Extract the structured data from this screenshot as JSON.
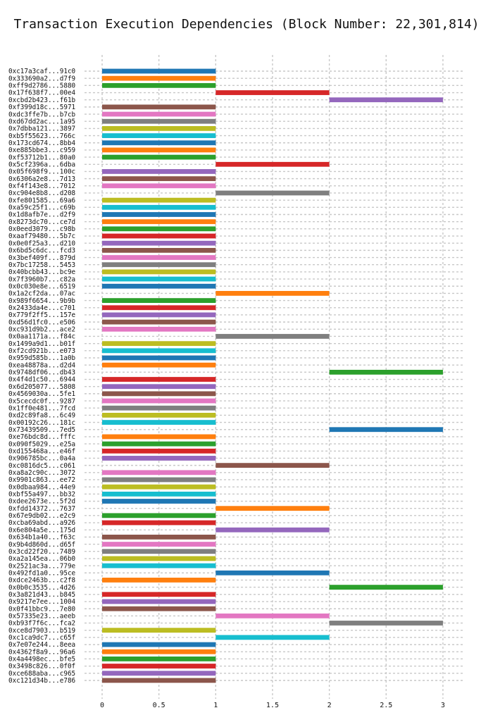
{
  "chart_data": {
    "type": "bar",
    "orientation": "horizontal-range",
    "title": "Transaction Execution Dependencies (Block Number: 22,301,814)",
    "xlabel": "",
    "ylabel": "",
    "xlim": [
      0,
      3.2
    ],
    "xticks": [
      0,
      0.5,
      1,
      1.5,
      2,
      2.5,
      3
    ],
    "xtick_labels": [
      "0",
      "0.5",
      "1",
      "1.5",
      "2",
      "2.5",
      "3"
    ],
    "grid": true,
    "legend": false,
    "palette": [
      "#1f77b4",
      "#ff7f0e",
      "#2ca02c",
      "#d62728",
      "#9467bd",
      "#8c564b",
      "#e377c2",
      "#7f7f7f",
      "#bcbd22",
      "#17becf"
    ],
    "transactions": [
      {
        "label": "0xc17a3caf...91c0",
        "start": 0,
        "end": 1
      },
      {
        "label": "0x333690a2...d7f9",
        "start": 0,
        "end": 1
      },
      {
        "label": "0xff9d2786...5880",
        "start": 0,
        "end": 1
      },
      {
        "label": "0x17f638f7...00e4",
        "start": 1,
        "end": 2
      },
      {
        "label": "0xcbd2b423...f61b",
        "start": 2,
        "end": 3
      },
      {
        "label": "0xf399d18c...5971",
        "start": 0,
        "end": 1
      },
      {
        "label": "0xdc3ffe7b...b7cb",
        "start": 0,
        "end": 1
      },
      {
        "label": "0xd67dd2ac...1a95",
        "start": 0,
        "end": 1
      },
      {
        "label": "0x7dbba121...3897",
        "start": 0,
        "end": 1
      },
      {
        "label": "0xb5f55623...766c",
        "start": 0,
        "end": 1
      },
      {
        "label": "0x173cd674...8bb4",
        "start": 0,
        "end": 1
      },
      {
        "label": "0xe885bbe3...c959",
        "start": 0,
        "end": 1
      },
      {
        "label": "0xf53712b1...80a0",
        "start": 0,
        "end": 1
      },
      {
        "label": "0x5cf2396a...6dba",
        "start": 1,
        "end": 2
      },
      {
        "label": "0x05f698f9...100c",
        "start": 0,
        "end": 1
      },
      {
        "label": "0x6306a2e8...7d13",
        "start": 0,
        "end": 1
      },
      {
        "label": "0xf4f143e8...7012",
        "start": 0,
        "end": 1
      },
      {
        "label": "0xc904e8b8...d208",
        "start": 1,
        "end": 2
      },
      {
        "label": "0xfe801585...69a6",
        "start": 0,
        "end": 1
      },
      {
        "label": "0xa59c25f1...c69b",
        "start": 0,
        "end": 1
      },
      {
        "label": "0x1d8afb7e...d2f9",
        "start": 0,
        "end": 1
      },
      {
        "label": "0x8273dc70...ce7d",
        "start": 0,
        "end": 1
      },
      {
        "label": "0x0eed3079...c98b",
        "start": 0,
        "end": 1
      },
      {
        "label": "0xaaf79480...5b7c",
        "start": 0,
        "end": 1
      },
      {
        "label": "0x0e0f25a3...d210",
        "start": 0,
        "end": 1
      },
      {
        "label": "0x6bd5c6dc...fcd3",
        "start": 0,
        "end": 1
      },
      {
        "label": "0x3bef409f...879d",
        "start": 0,
        "end": 1
      },
      {
        "label": "0x7bc17258...5453",
        "start": 0,
        "end": 1
      },
      {
        "label": "0x40bcbb43...bc9e",
        "start": 0,
        "end": 1
      },
      {
        "label": "0x7f3960b7...c82a",
        "start": 0,
        "end": 1
      },
      {
        "label": "0x0c030e8e...6519",
        "start": 0,
        "end": 1
      },
      {
        "label": "0x1a2cf2da...07ac",
        "start": 1,
        "end": 2
      },
      {
        "label": "0x989f6654...9b9b",
        "start": 0,
        "end": 1
      },
      {
        "label": "0x2433da4e...c701",
        "start": 0,
        "end": 1
      },
      {
        "label": "0x779f2ff5...157e",
        "start": 0,
        "end": 1
      },
      {
        "label": "0xd56d1fc0...e506",
        "start": 0,
        "end": 1
      },
      {
        "label": "0xc931d9b2...ace2",
        "start": 0,
        "end": 1
      },
      {
        "label": "0x0aa1171a...f84c",
        "start": 1,
        "end": 2
      },
      {
        "label": "0x1499a9d1...b01f",
        "start": 0,
        "end": 1
      },
      {
        "label": "0xf2cd921b...e073",
        "start": 0,
        "end": 1
      },
      {
        "label": "0x959d585b...1a0b",
        "start": 0,
        "end": 1
      },
      {
        "label": "0xea48878a...d2d4",
        "start": 0,
        "end": 1
      },
      {
        "label": "0x9748df06...db43",
        "start": 2,
        "end": 3
      },
      {
        "label": "0x4f4d1c50...6944",
        "start": 0,
        "end": 1
      },
      {
        "label": "0x6d205077...5808",
        "start": 0,
        "end": 1
      },
      {
        "label": "0x4569030a...5fe1",
        "start": 0,
        "end": 1
      },
      {
        "label": "0x5cecdc0f...9287",
        "start": 0,
        "end": 1
      },
      {
        "label": "0x1ff0e481...7fcd",
        "start": 0,
        "end": 1
      },
      {
        "label": "0xd2c89fa8...6c49",
        "start": 0,
        "end": 1
      },
      {
        "label": "0x00192c26...181c",
        "start": 0,
        "end": 1
      },
      {
        "label": "0x73439509...7ed5",
        "start": 2,
        "end": 3
      },
      {
        "label": "0xe76bdc8d...fffc",
        "start": 0,
        "end": 1
      },
      {
        "label": "0x090f5029...e25a",
        "start": 0,
        "end": 1
      },
      {
        "label": "0xd155468a...e46f",
        "start": 0,
        "end": 1
      },
      {
        "label": "0x906785bc...0a4a",
        "start": 0,
        "end": 1
      },
      {
        "label": "0xc0816dc5...c061",
        "start": 1,
        "end": 2
      },
      {
        "label": "0xa8a2c90c...3072",
        "start": 0,
        "end": 1
      },
      {
        "label": "0x9901c863...ee72",
        "start": 0,
        "end": 1
      },
      {
        "label": "0x0dbaa984...44e9",
        "start": 0,
        "end": 1
      },
      {
        "label": "0xbf55a497...bb32",
        "start": 0,
        "end": 1
      },
      {
        "label": "0xdee2673e...5f2d",
        "start": 0,
        "end": 1
      },
      {
        "label": "0xfdd14372...7637",
        "start": 1,
        "end": 2
      },
      {
        "label": "0x67e9db02...e2c9",
        "start": 0,
        "end": 1
      },
      {
        "label": "0xcba69abd...a926",
        "start": 0,
        "end": 1
      },
      {
        "label": "0x6e804a5e...175d",
        "start": 1,
        "end": 2
      },
      {
        "label": "0x634b1a40...f63c",
        "start": 0,
        "end": 1
      },
      {
        "label": "0x9b4d860d...d65f",
        "start": 0,
        "end": 1
      },
      {
        "label": "0x3cd22f20...7489",
        "start": 0,
        "end": 1
      },
      {
        "label": "0xa2a145ea...06b0",
        "start": 0,
        "end": 1
      },
      {
        "label": "0x2521ac3a...779e",
        "start": 0,
        "end": 1
      },
      {
        "label": "0x492fd1a0...95ce",
        "start": 1,
        "end": 2
      },
      {
        "label": "0xdce2463b...c2f8",
        "start": 0,
        "end": 1
      },
      {
        "label": "0x0b0c3535...4d26",
        "start": 2,
        "end": 3
      },
      {
        "label": "0x3a821d43...b845",
        "start": 0,
        "end": 1
      },
      {
        "label": "0x9217e7ee...1004",
        "start": 0,
        "end": 1
      },
      {
        "label": "0x0f41bbc9...7e80",
        "start": 0,
        "end": 1
      },
      {
        "label": "0x57335e23...aeeb",
        "start": 1,
        "end": 2
      },
      {
        "label": "0xb93f7f6c...fca2",
        "start": 2,
        "end": 3
      },
      {
        "label": "0xce8d7903...b519",
        "start": 0,
        "end": 1
      },
      {
        "label": "0xc1ca9dc7...c65f",
        "start": 1,
        "end": 2
      },
      {
        "label": "0x7e07e244...8eea",
        "start": 0,
        "end": 1
      },
      {
        "label": "0x4362f8a9...96a6",
        "start": 0,
        "end": 1
      },
      {
        "label": "0x4a4498ec...bfe5",
        "start": 0,
        "end": 1
      },
      {
        "label": "0x3498c826...0f0f",
        "start": 0,
        "end": 1
      },
      {
        "label": "0xce688aba...c965",
        "start": 0,
        "end": 1
      },
      {
        "label": "0xc121d34b...e786",
        "start": 0,
        "end": 1
      }
    ]
  }
}
